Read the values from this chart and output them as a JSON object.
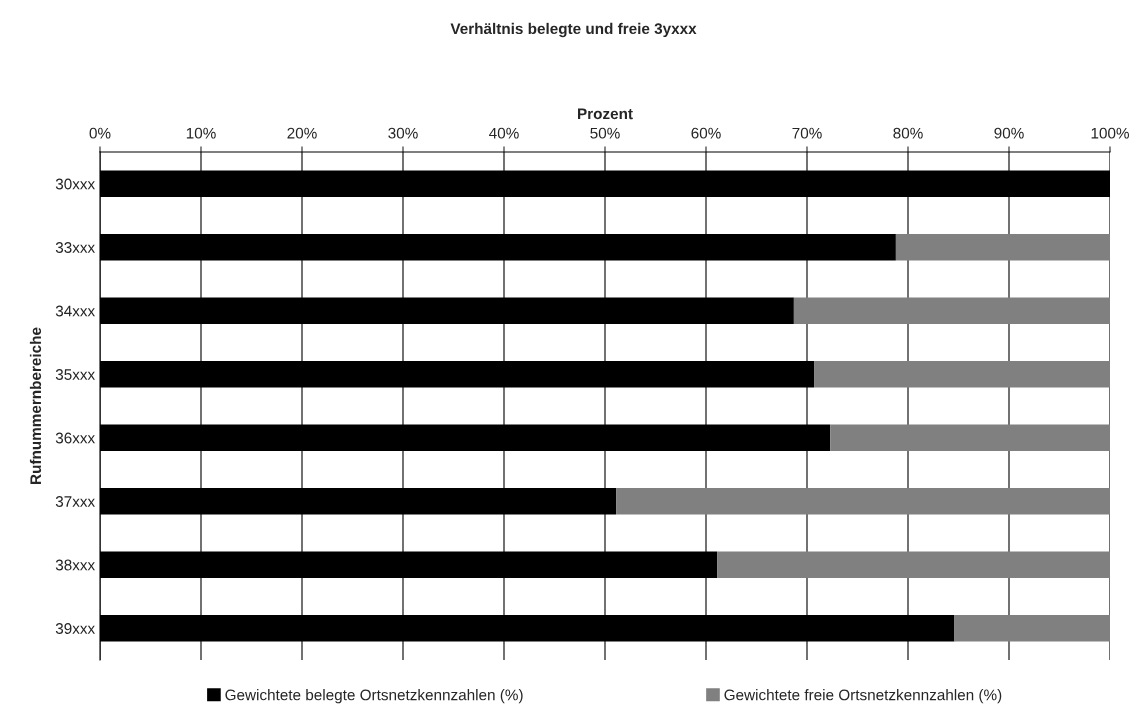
{
  "chart_data": {
    "type": "bar",
    "orientation": "horizontal",
    "stacked": true,
    "title": "Verhältnis belegte und freie 3yxxx",
    "xlabel": "Prozent",
    "ylabel": "Rufnummernbereiche",
    "categories": [
      "30xxx",
      "33xxx",
      "34xxx",
      "35xxx",
      "36xxx",
      "37xxx",
      "38xxx",
      "39xxx"
    ],
    "series": [
      {
        "name": "Gewichtete belegte Ortsnetzkennzahlen (%)",
        "color": "#000000",
        "values": [
          100,
          78.8,
          68.7,
          70.7,
          72.3,
          51.1,
          61.1,
          84.6
        ]
      },
      {
        "name": "Gewichtete freie Ortsnetzkennzahlen (%)",
        "color": "#808080",
        "values": [
          null,
          21.2,
          31.3,
          29.3,
          27.7,
          48.9,
          38.9,
          15.4
        ]
      }
    ],
    "xlim": [
      0,
      100
    ],
    "xticks": [
      {
        "value": 0,
        "label": "0%"
      },
      {
        "value": 10,
        "label": "10%"
      },
      {
        "value": 20,
        "label": "20%"
      },
      {
        "value": 30,
        "label": "30%"
      },
      {
        "value": 40,
        "label": "40%"
      },
      {
        "value": 50,
        "label": "50%"
      },
      {
        "value": 60,
        "label": "60%"
      },
      {
        "value": 70,
        "label": "70%"
      },
      {
        "value": 80,
        "label": "80%"
      },
      {
        "value": 90,
        "label": "90%"
      },
      {
        "value": 100,
        "label": "100%"
      }
    ],
    "grid": "x",
    "legend": "bottom"
  }
}
